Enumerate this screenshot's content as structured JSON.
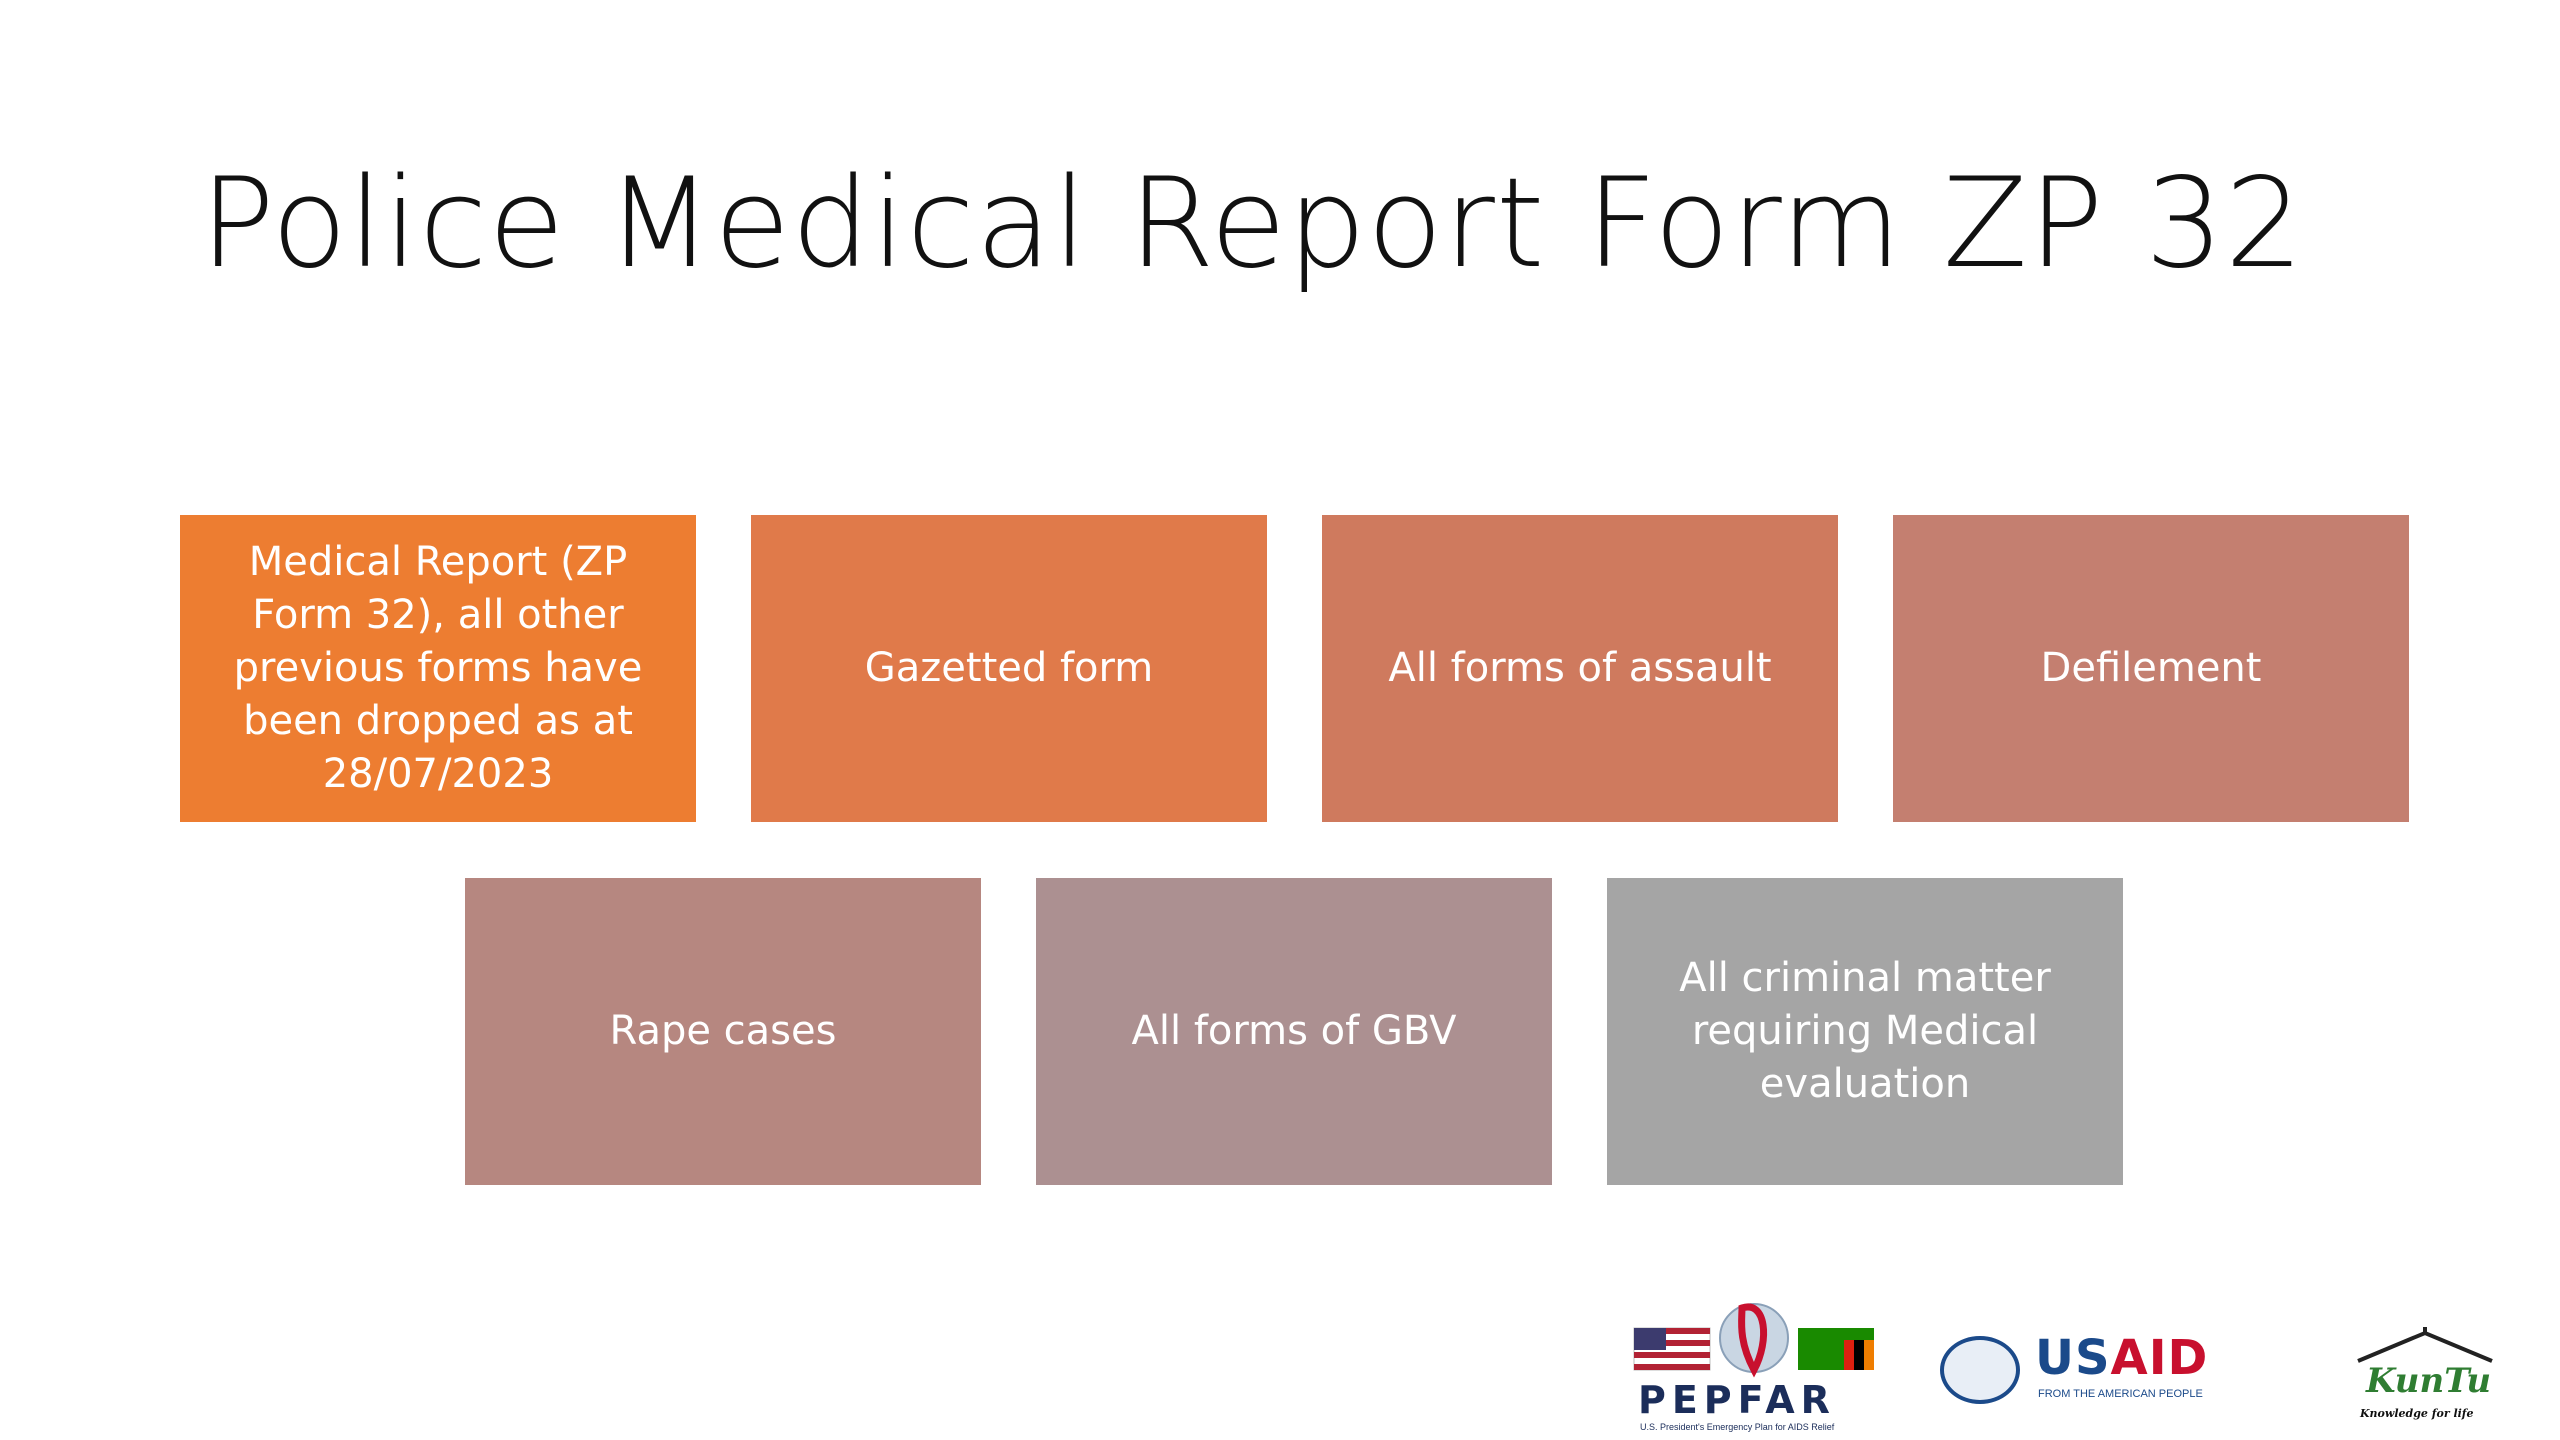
{
  "slide": {
    "title": "Police Medical Report Form ZP 32",
    "boxes_row1": [
      {
        "text": "Medical Report (ZP Form 32), all other previous forms have been dropped as at 28/07/2023",
        "color": "#ED7D31"
      },
      {
        "text": "Gazetted form",
        "color": "#E07A4A"
      },
      {
        "text": "All forms of assault",
        "color": "#CF7A5E"
      },
      {
        "text": "Defilement",
        "color": "#C47F70"
      }
    ],
    "boxes_row2": [
      {
        "text": "Rape cases",
        "color": "#B68780"
      },
      {
        "text": "All forms of GBV",
        "color": "#AC9091"
      },
      {
        "text": "All criminal matter requiring Medical evaluation",
        "color": "#A5A5A5"
      }
    ]
  },
  "logos": {
    "pepfar": {
      "name": "PEPFAR",
      "subtitle": "U.S. President's Emergency Plan for AIDS Relief"
    },
    "usaid": {
      "name_us": "US",
      "name_aid": "AID",
      "subtitle": "FROM THE AMERICAN PEOPLE"
    },
    "kuntu": {
      "name": "KunTu",
      "subtitle": "Knowledge for life"
    }
  }
}
